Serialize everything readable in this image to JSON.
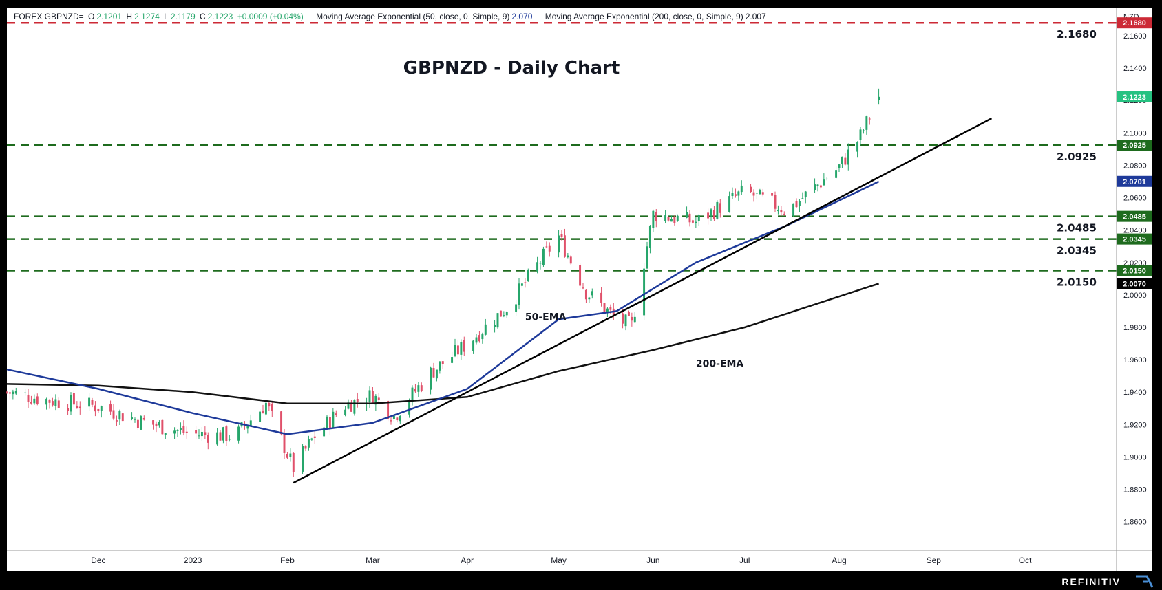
{
  "legend": {
    "symbol": "FOREX GBPNZD=",
    "o_label": "O",
    "o_value": "2.1201",
    "h_label": "H",
    "h_value": "2.1274",
    "l_label": "L",
    "l_value": "2.1179",
    "c_label": "C",
    "c_value": "2.1223",
    "change": "+0.0009 (+0.04%)",
    "ema50_text": "Moving Average Exponential (50, close, 0, Simple, 9)",
    "ema50_value": "2.070",
    "ema200_text": "Moving Average Exponential (200, close, 0, Simple, 9)",
    "ema200_value": "2.007"
  },
  "brand": "REFINITIV",
  "colors": {
    "background": "#ffffff",
    "frame": "#000000",
    "up_candle": "#26a66b",
    "down_candle": "#e0506a",
    "ema50": "#1e3a9a",
    "ema200": "#111111",
    "support_level": "#1e6b1e",
    "resistance_level": "#cc2a36",
    "last_price": "#26c281",
    "trendline": "#000000"
  },
  "chart_data": {
    "type": "candlestick",
    "title": "GBPNZD - Daily Chart",
    "currency": "NZD",
    "ylim": [
      1.842,
      2.177
    ],
    "y_ticks": [
      "2.1600",
      "2.1400",
      "2.1200",
      "2.1000",
      "2.0800",
      "2.0600",
      "2.0400",
      "2.0200",
      "2.0000",
      "1.9800",
      "1.9600",
      "1.9400",
      "1.9200",
      "1.9000",
      "1.8800",
      "1.8600"
    ],
    "x_range": [
      "2022-11-01",
      "2023-10-31"
    ],
    "x_ticks": [
      {
        "label": "Dec",
        "date": "2022-12-01"
      },
      {
        "label": "2023",
        "date": "2023-01-01"
      },
      {
        "label": "Feb",
        "date": "2023-02-01"
      },
      {
        "label": "Mar",
        "date": "2023-03-01"
      },
      {
        "label": "Apr",
        "date": "2023-04-01"
      },
      {
        "label": "May",
        "date": "2023-05-01"
      },
      {
        "label": "Jun",
        "date": "2023-06-01"
      },
      {
        "label": "Jul",
        "date": "2023-07-01"
      },
      {
        "label": "Aug",
        "date": "2023-08-01"
      },
      {
        "label": "Sep",
        "date": "2023-09-01"
      },
      {
        "label": "Oct",
        "date": "2023-10-01"
      }
    ],
    "grid": false,
    "close_series": {
      "name": "GBPNZD",
      "points": [
        [
          "2022-11-01",
          1.94
        ],
        [
          "2022-11-15",
          1.935
        ],
        [
          "2022-12-01",
          1.931
        ],
        [
          "2022-12-15",
          1.922
        ],
        [
          "2023-01-01",
          1.914
        ],
        [
          "2023-01-15",
          1.913
        ],
        [
          "2023-01-25",
          1.933
        ],
        [
          "2023-02-03",
          1.893
        ],
        [
          "2023-02-10",
          1.913
        ],
        [
          "2023-02-20",
          1.932
        ],
        [
          "2023-03-01",
          1.938
        ],
        [
          "2023-03-08",
          1.925
        ],
        [
          "2023-03-20",
          1.952
        ],
        [
          "2023-04-01",
          1.97
        ],
        [
          "2023-04-15",
          1.994
        ],
        [
          "2023-04-25",
          2.021
        ],
        [
          "2023-05-01",
          2.036
        ],
        [
          "2023-05-10",
          2.002
        ],
        [
          "2023-05-20",
          1.985
        ],
        [
          "2023-05-25",
          1.981
        ],
        [
          "2023-06-01",
          2.05
        ],
        [
          "2023-06-15",
          2.045
        ],
        [
          "2023-07-01",
          2.064
        ],
        [
          "2023-07-15",
          2.052
        ],
        [
          "2023-08-01",
          2.079
        ],
        [
          "2023-08-08",
          2.098
        ],
        [
          "2023-08-14",
          2.1223
        ]
      ]
    },
    "ema50": {
      "name": "50-EMA",
      "points": [
        [
          "2022-11-01",
          1.954
        ],
        [
          "2022-12-01",
          1.942
        ],
        [
          "2023-01-01",
          1.927
        ],
        [
          "2023-02-01",
          1.914
        ],
        [
          "2023-03-01",
          1.921
        ],
        [
          "2023-04-01",
          1.942
        ],
        [
          "2023-05-01",
          1.985
        ],
        [
          "2023-05-20",
          1.99
        ],
        [
          "2023-06-15",
          2.02
        ],
        [
          "2023-07-15",
          2.043
        ],
        [
          "2023-08-14",
          2.07
        ]
      ]
    },
    "ema200": {
      "name": "200-EMA",
      "points": [
        [
          "2022-11-01",
          1.945
        ],
        [
          "2022-12-01",
          1.944
        ],
        [
          "2023-01-01",
          1.94
        ],
        [
          "2023-02-01",
          1.933
        ],
        [
          "2023-03-01",
          1.933
        ],
        [
          "2023-04-01",
          1.937
        ],
        [
          "2023-05-01",
          1.953
        ],
        [
          "2023-06-01",
          1.966
        ],
        [
          "2023-07-01",
          1.98
        ],
        [
          "2023-08-14",
          2.007
        ]
      ]
    },
    "horizontal_levels": [
      {
        "label": "2.1680",
        "value": 2.168,
        "kind": "resistance"
      },
      {
        "label": "2.0925",
        "value": 2.0925,
        "kind": "support"
      },
      {
        "label": "2.0485",
        "value": 2.0485,
        "kind": "support"
      },
      {
        "label": "2.0345",
        "value": 2.0345,
        "kind": "support"
      },
      {
        "label": "2.0150",
        "value": 2.015,
        "kind": "support"
      }
    ],
    "trendline": {
      "from": [
        "2023-02-03",
        1.884
      ],
      "to": [
        "2023-09-20",
        2.109
      ]
    },
    "price_tags": [
      {
        "label": "2.1680",
        "value": 2.168,
        "color": "#cc2a36"
      },
      {
        "label": "2.1223",
        "value": 2.1223,
        "color": "#26c281"
      },
      {
        "label": "2.0925",
        "value": 2.0925,
        "color": "#1e6b1e"
      },
      {
        "label": "2.0701",
        "value": 2.0701,
        "color": "#1e3a9a"
      },
      {
        "label": "2.0485",
        "value": 2.0485,
        "color": "#1e6b1e"
      },
      {
        "label": "2.0345",
        "value": 2.0345,
        "color": "#1e6b1e"
      },
      {
        "label": "2.0150",
        "value": 2.015,
        "color": "#1e6b1e"
      },
      {
        "label": "2.0070",
        "value": 2.007,
        "color": "#000000"
      }
    ],
    "annotations": [
      {
        "text": "50-EMA",
        "date": "2023-04-20",
        "value": 1.9845
      },
      {
        "text": "200-EMA",
        "date": "2023-06-15",
        "value": 1.9555
      }
    ]
  }
}
